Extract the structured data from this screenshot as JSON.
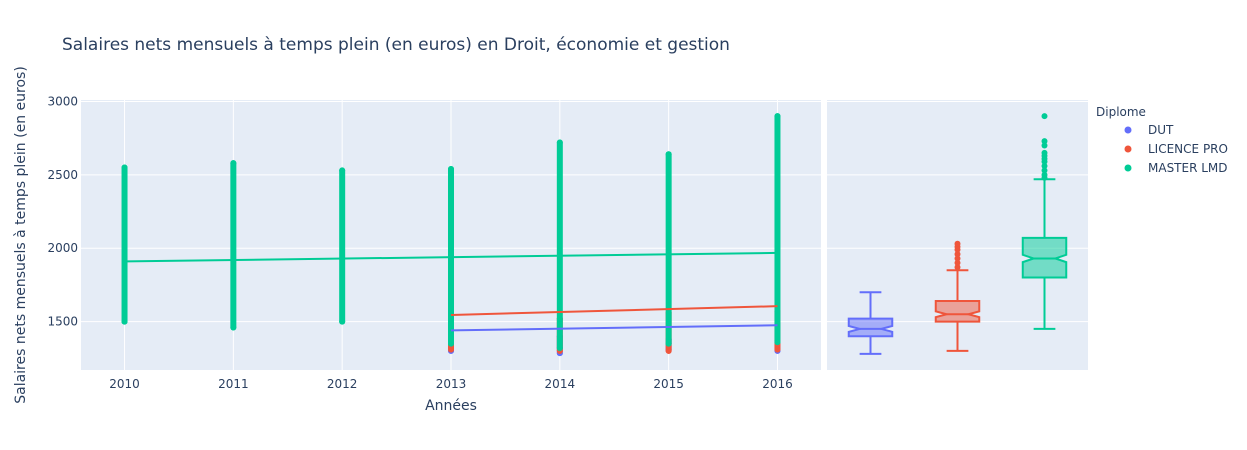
{
  "chart_data": {
    "type": "scatter",
    "title": "Salaires nets mensuels à temps plein (en euros) en Droit, économie et gestion",
    "xlabel": "Années",
    "ylabel": "Salaires nets mensuels à temps plein (en euros)",
    "x_ticks": [
      "2010",
      "2011",
      "2012",
      "2013",
      "2014",
      "2015",
      "2016"
    ],
    "y_ticks": [
      1500,
      2000,
      2500,
      3000
    ],
    "xlim": [
      2009.6,
      2016.4
    ],
    "ylim": [
      1170,
      3010
    ],
    "grid": true,
    "legend": {
      "title": "Diplome",
      "position": "top-right"
    },
    "series": [
      {
        "name": "DUT",
        "color": "#636efa",
        "scatter": [
          {
            "x": 2013,
            "y_min": 1300,
            "y_max": 1440
          },
          {
            "x": 2014,
            "y_min": 1285,
            "y_max": 1400
          },
          {
            "x": 2015,
            "y_min": 1310,
            "y_max": 1380
          },
          {
            "x": 2016,
            "y_min": 1300,
            "y_max": 1370
          }
        ],
        "trend": {
          "x": [
            2013,
            2016
          ],
          "y": [
            1440,
            1475
          ]
        },
        "box": {
          "min": 1280,
          "q1": 1400,
          "median": 1450,
          "q3": 1520,
          "max": 1700,
          "notch_low": 1430,
          "notch_high": 1470,
          "outliers": []
        }
      },
      {
        "name": "LICENCE PRO",
        "color": "#ef553b",
        "scatter": [
          {
            "x": 2013,
            "y_min": 1310,
            "y_max": 1470
          },
          {
            "x": 2014,
            "y_min": 1300,
            "y_max": 1520
          },
          {
            "x": 2015,
            "y_min": 1300,
            "y_max": 1560
          },
          {
            "x": 2016,
            "y_min": 1310,
            "y_max": 1570
          }
        ],
        "trend": {
          "x": [
            2013,
            2016
          ],
          "y": [
            1545,
            1605
          ]
        },
        "box": {
          "min": 1300,
          "q1": 1500,
          "median": 1550,
          "q3": 1640,
          "max": 1850,
          "notch_low": 1530,
          "notch_high": 1570,
          "outliers": [
            1870,
            1900,
            1930,
            1960,
            1990,
            2010,
            2030
          ]
        }
      },
      {
        "name": "MASTER LMD",
        "color": "#00cc96",
        "scatter": [
          {
            "x": 2010,
            "y_min": 1500,
            "y_max": 2550
          },
          {
            "x": 2011,
            "y_min": 1460,
            "y_max": 2580
          },
          {
            "x": 2012,
            "y_min": 1500,
            "y_max": 2530
          },
          {
            "x": 2013,
            "y_min": 1350,
            "y_max": 2540
          },
          {
            "x": 2014,
            "y_min": 1320,
            "y_max": 2720
          },
          {
            "x": 2015,
            "y_min": 1350,
            "y_max": 2640
          },
          {
            "x": 2016,
            "y_min": 1360,
            "y_max": 2900
          }
        ],
        "trend": {
          "x": [
            2010,
            2016
          ],
          "y": [
            1910,
            1968
          ]
        },
        "box": {
          "min": 1450,
          "q1": 1800,
          "median": 1930,
          "q3": 2070,
          "max": 2470,
          "notch_low": 1905,
          "notch_high": 1955,
          "outliers": [
            2480,
            2500,
            2530,
            2560,
            2590,
            2610,
            2630,
            2650,
            2700,
            2730,
            2900
          ]
        }
      }
    ]
  }
}
